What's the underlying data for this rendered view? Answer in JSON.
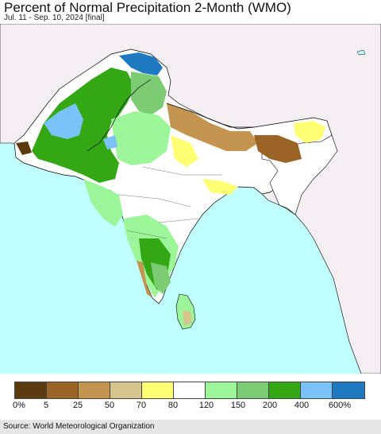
{
  "title": "Percent of Normal Precipitation 2-Month (WMO)",
  "subtitle": "Jul. 11 - Sep. 10, 2024 [final]",
  "colors": {
    "sea": "#bfffff",
    "land_outside": "#f2eef2",
    "boundary": "#000000"
  },
  "legend": {
    "swatches": [
      "#5c3b10",
      "#9a6426",
      "#c4954f",
      "#d6c48d",
      "#ffff73",
      "#ffffff",
      "#9cf598",
      "#7ccc74",
      "#34a814",
      "#7ac3fa",
      "#1e79c0"
    ],
    "labels": [
      "0%",
      "5",
      "25",
      "50",
      "70",
      "80",
      "120",
      "150",
      "200",
      "400",
      "600%"
    ]
  },
  "source": "Source: World Meteorological Organization"
}
